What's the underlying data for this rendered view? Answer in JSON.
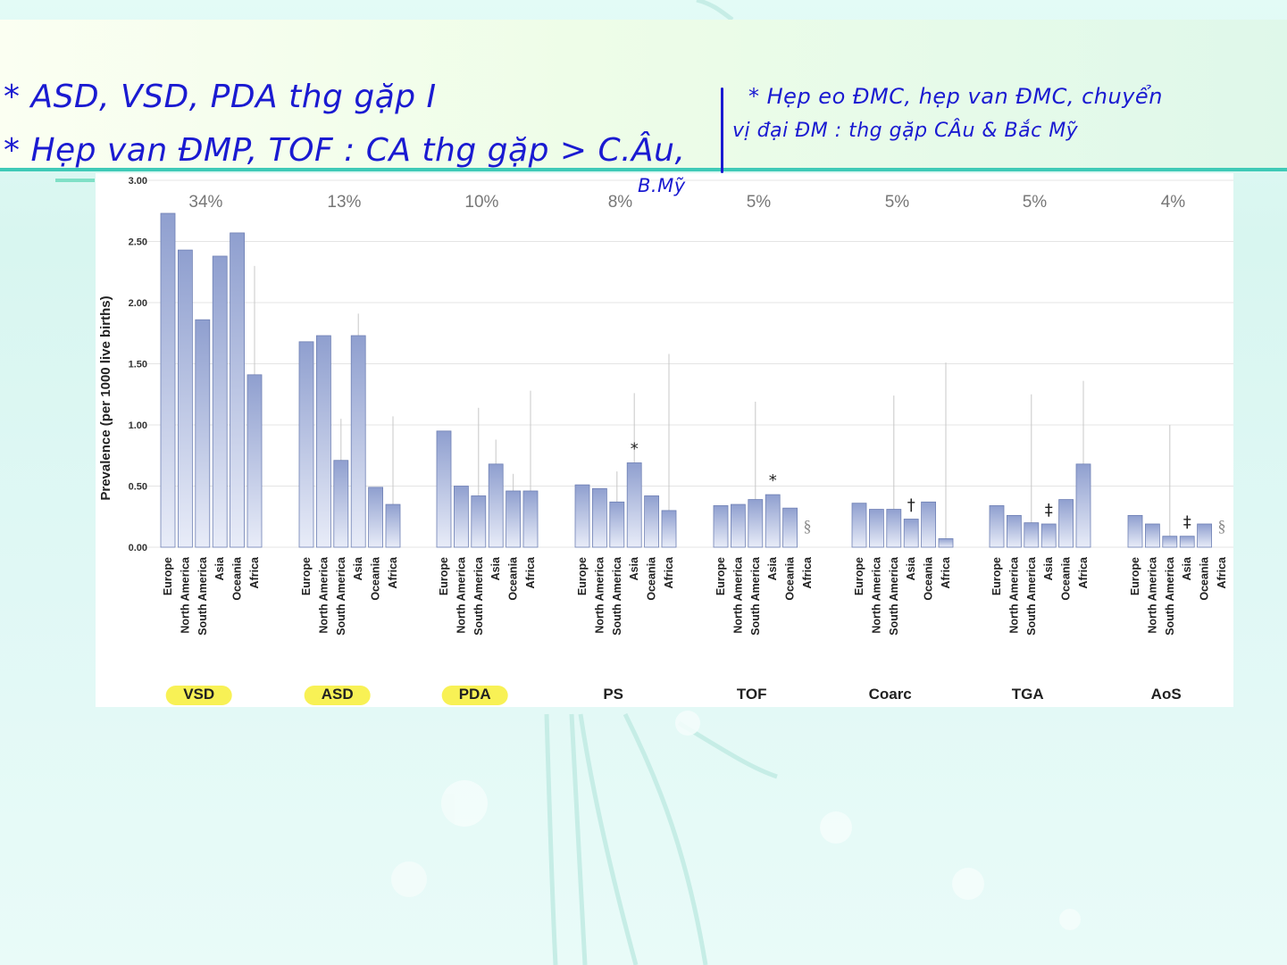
{
  "notes": {
    "line1": "* ASD, VSD, PDA thg gặp I",
    "line2": "* Hẹp van ĐMP, TOF : CA thg gặp > C.Âu,",
    "line2b": "B.Mỹ",
    "right1": "* Hẹp eo ĐMC, hẹp van ĐMC, chuyển",
    "right2": "vị đại ĐM : thg gặp CÂu & Bắc Mỹ"
  },
  "colors": {
    "bar_top": "#8f9fcf",
    "bar_bottom": "#e8ecf8",
    "bar_stroke": "#6f80b4",
    "grid": "#e4e4e4",
    "whisker": "#c8c8c8",
    "highlight": "#f5ec1c",
    "ink": "#1a1ad1",
    "teal_line": "#3fcab7"
  },
  "chart_data": {
    "type": "bar",
    "ylabel": "Prevalence (per 1000 live births)",
    "ylim": [
      0,
      3
    ],
    "yticks": [
      "0.00",
      "0.50",
      "1.00",
      "1.50",
      "2.00",
      "2.50",
      "3.00"
    ],
    "grid": true,
    "regions": [
      "Europe",
      "North America",
      "South America",
      "Asia",
      "Oceania",
      "Africa"
    ],
    "groups": [
      {
        "name": "VSD",
        "percent": "34%",
        "highlighted": true,
        "marker": "",
        "values": [
          2.73,
          2.43,
          1.86,
          2.38,
          2.57,
          1.41
        ],
        "upper": [
          2.73,
          2.43,
          1.86,
          2.38,
          2.57,
          2.3
        ]
      },
      {
        "name": "ASD",
        "percent": "13%",
        "highlighted": true,
        "marker": "",
        "values": [
          1.68,
          1.73,
          0.71,
          1.73,
          0.49,
          0.35
        ],
        "upper": [
          1.68,
          1.73,
          1.05,
          1.91,
          0.49,
          1.07
        ]
      },
      {
        "name": "PDA",
        "percent": "10%",
        "highlighted": true,
        "marker": "",
        "values": [
          0.95,
          0.5,
          0.42,
          0.68,
          0.46,
          0.46
        ],
        "upper": [
          0.95,
          0.5,
          1.14,
          0.88,
          0.6,
          1.28
        ]
      },
      {
        "name": "PS",
        "percent": "8%",
        "highlighted": false,
        "marker": "*",
        "values": [
          0.51,
          0.48,
          0.37,
          0.69,
          0.42,
          0.3
        ],
        "upper": [
          0.51,
          0.48,
          0.62,
          1.26,
          0.42,
          1.58
        ]
      },
      {
        "name": "TOF",
        "percent": "5%",
        "highlighted": false,
        "marker": "*",
        "values": [
          0.34,
          0.35,
          0.39,
          0.43,
          0.32,
          null
        ],
        "upper": [
          0.34,
          0.35,
          1.19,
          0.43,
          0.32,
          null
        ]
      },
      {
        "name": "Coarc",
        "percent": "5%",
        "highlighted": false,
        "marker": "†",
        "values": [
          0.36,
          0.31,
          0.31,
          0.23,
          0.37,
          0.07
        ],
        "upper": [
          0.36,
          0.31,
          1.24,
          0.23,
          0.37,
          1.51
        ]
      },
      {
        "name": "TGA",
        "percent": "5%",
        "highlighted": false,
        "marker": "‡",
        "values": [
          0.34,
          0.26,
          0.2,
          0.19,
          0.39,
          0.68
        ],
        "upper": [
          0.34,
          0.26,
          1.25,
          0.19,
          0.39,
          1.36
        ]
      },
      {
        "name": "AoS",
        "percent": "4%",
        "highlighted": false,
        "marker": "‡",
        "values": [
          0.26,
          0.19,
          0.09,
          0.09,
          0.19,
          null
        ],
        "upper": [
          0.26,
          0.19,
          1.0,
          0.09,
          0.19,
          null
        ]
      }
    ],
    "missing_marker": "§"
  }
}
